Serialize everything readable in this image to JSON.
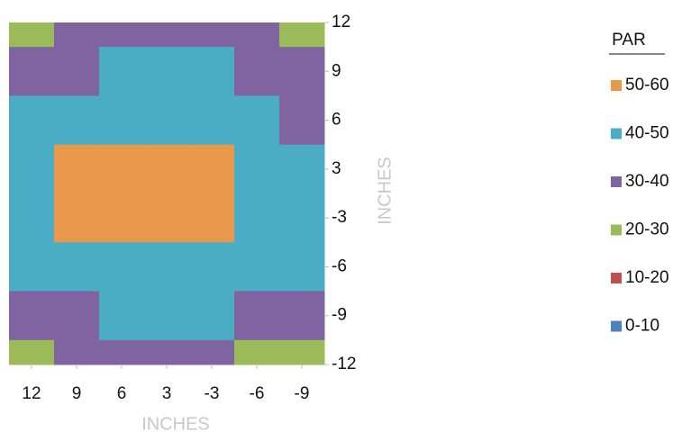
{
  "chart_data": {
    "type": "contour",
    "x_categories": [
      12,
      9,
      6,
      3,
      -3,
      -6,
      -9
    ],
    "y_categories": [
      12,
      9,
      6,
      3,
      -3,
      -6,
      -9,
      -12
    ],
    "z": [
      [
        25,
        32,
        35,
        35,
        32,
        30,
        22
      ],
      [
        32,
        38,
        42,
        44,
        42,
        38,
        32
      ],
      [
        40,
        44,
        48,
        48,
        46,
        44,
        38
      ],
      [
        44,
        55,
        56,
        56,
        55,
        46,
        42
      ],
      [
        44,
        54,
        56,
        56,
        54,
        46,
        42
      ],
      [
        42,
        46,
        48,
        48,
        46,
        44,
        40
      ],
      [
        34,
        38,
        42,
        42,
        40,
        36,
        32
      ],
      [
        25,
        30,
        34,
        34,
        32,
        28,
        22
      ]
    ],
    "x_label": "INCHES",
    "y_label": "INCHES",
    "legend_title": "PAR",
    "bands": [
      {
        "name": "50-60",
        "color": "#e9994c"
      },
      {
        "name": "40-50",
        "color": "#4bacc6"
      },
      {
        "name": "30-40",
        "color": "#8064a2"
      },
      {
        "name": "20-30",
        "color": "#9bbb59"
      },
      {
        "name": "10-20",
        "color": "#c0504d"
      },
      {
        "name": "0-10",
        "color": "#4f81bd"
      }
    ]
  }
}
